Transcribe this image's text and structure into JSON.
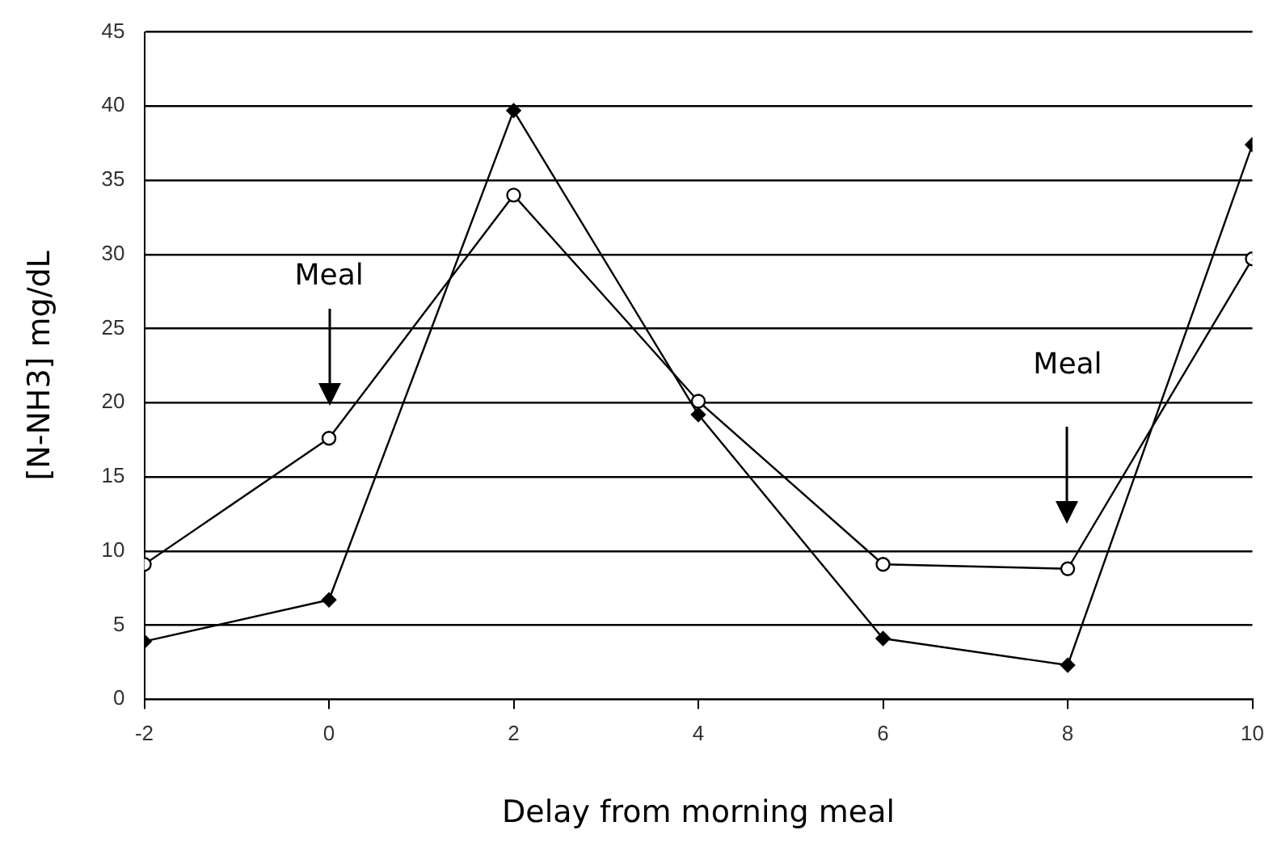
{
  "chart_data": {
    "type": "line",
    "xlabel": "Delay from morning meal",
    "ylabel": "[N-NH3] mg/dL",
    "x": [
      -2,
      0,
      2,
      4,
      6,
      8,
      10
    ],
    "series": [
      {
        "color": "#000000",
        "marker": "circle",
        "values": [
          9.1,
          17.6,
          34.0,
          20.1,
          9.1,
          8.8,
          29.7
        ]
      },
      {
        "color": "#000000",
        "marker": "diamond",
        "values": [
          3.9,
          6.7,
          39.7,
          19.2,
          4.1,
          2.3,
          37.4
        ]
      }
    ],
    "xlim": [
      -2,
      10
    ],
    "xticks": [
      -2,
      0,
      2,
      4,
      6,
      8,
      10
    ],
    "ylim": [
      0,
      45
    ],
    "yticks": [
      0,
      5,
      10,
      15,
      20,
      25,
      30,
      35,
      40,
      45
    ],
    "grid": "y",
    "legend": false,
    "line_style": "solid",
    "annotations": [
      "Meal",
      "Meal"
    ]
  }
}
